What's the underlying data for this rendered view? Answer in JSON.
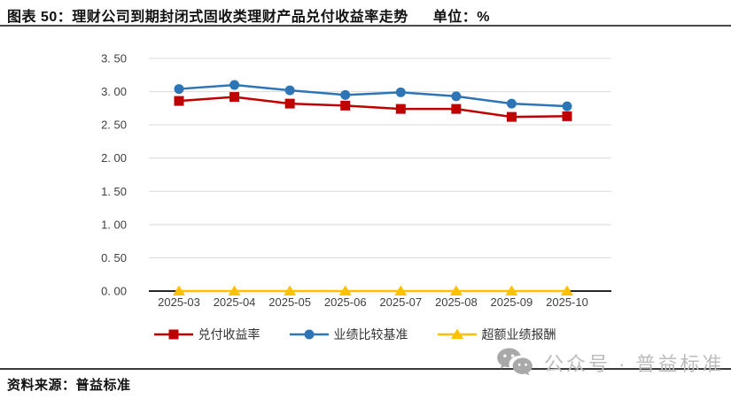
{
  "figure": {
    "title": "图表 50：理财公司到期封闭式固收类理财产品兑付收益率走势",
    "unit_label": "单位：%",
    "source": "资料来源：普益标准",
    "watermark_text": "公众号 · 普益标准",
    "watermark_icon": "wechat-icon"
  },
  "colors": {
    "series_payout": "#C00000",
    "series_benchmark": "#2E75B6",
    "series_excess": "#FFC000",
    "gridline": "#D9D9D9",
    "axis": "#262626",
    "tick_text": "#3F3F3F",
    "divider": "#4A4A4A",
    "watermark": "#BCBCBC",
    "title_text": "#111111"
  },
  "chart_data": {
    "type": "line",
    "title": "理财公司到期封闭式固收类理财产品兑付收益率走势",
    "unit": "%",
    "categories": [
      "2025-03",
      "2025-04",
      "2025-05",
      "2025-06",
      "2025-07",
      "2025-08",
      "2025-09",
      "2025-10"
    ],
    "series": [
      {
        "id": "payout-yield",
        "name": "兑付收益率",
        "marker": "square",
        "color": "#C00000",
        "values": [
          2.86,
          2.92,
          2.82,
          2.79,
          2.74,
          2.74,
          2.62,
          2.63
        ]
      },
      {
        "id": "benchmark",
        "name": "业绩比较基准",
        "marker": "circle",
        "color": "#2E75B6",
        "values": [
          3.04,
          3.1,
          3.02,
          2.95,
          2.99,
          2.93,
          2.82,
          2.78
        ]
      },
      {
        "id": "excess-return",
        "name": "超额业绩报酬",
        "marker": "triangle",
        "color": "#FFC000",
        "values": [
          0.0,
          0.0,
          0.0,
          0.0,
          0.0,
          0.0,
          0.0,
          0.0
        ]
      }
    ],
    "ylim": [
      0,
      3.5
    ],
    "ytick_step": 0.5,
    "ytick_labels": [
      "0. 00",
      "0. 50",
      "1. 00",
      "1. 50",
      "2. 00",
      "2. 50",
      "3. 00",
      "3. 50"
    ],
    "grid": true,
    "legend_position": "bottom"
  }
}
